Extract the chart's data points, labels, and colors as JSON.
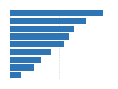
{
  "values": [
    95,
    78,
    65,
    60,
    55,
    42,
    32,
    24,
    11
  ],
  "bar_color": "#2e75b6",
  "background_color": "#ffffff",
  "grid_color": "#c0c0c0",
  "xlim": [
    0,
    100
  ],
  "bar_height": 0.82
}
